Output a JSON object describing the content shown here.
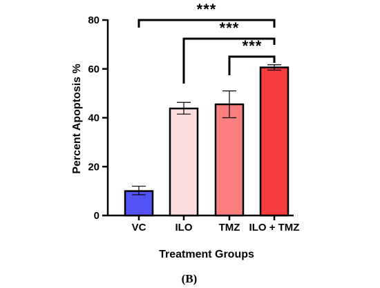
{
  "chart_data": {
    "type": "bar",
    "categories": [
      "VC",
      "ILO",
      "TMZ",
      "ILO + TMZ"
    ],
    "values": [
      10,
      43.8,
      45.5,
      60.6
    ],
    "errors": [
      [
        8.5,
        12.0
      ],
      [
        41.5,
        46.3
      ],
      [
        40.0,
        51.0
      ],
      [
        59.5,
        61.7
      ]
    ],
    "colors": [
      "#5252f5",
      "#fddede",
      "#fa7e7e",
      "#f53d3d"
    ],
    "xlabel": "Treatment Groups",
    "ylabel": "Percent Apoptosis %",
    "ylim": [
      0,
      80
    ],
    "yticks": [
      0,
      20,
      40,
      60,
      80
    ],
    "significance": [
      {
        "from": "VC",
        "to": "ILO + TMZ",
        "label": "***"
      },
      {
        "from": "ILO",
        "to": "ILO + TMZ",
        "label": "***"
      },
      {
        "from": "TMZ",
        "to": "ILO + TMZ",
        "label": "***"
      }
    ],
    "grid": false,
    "legend": "none"
  },
  "panel_label": "(B)"
}
